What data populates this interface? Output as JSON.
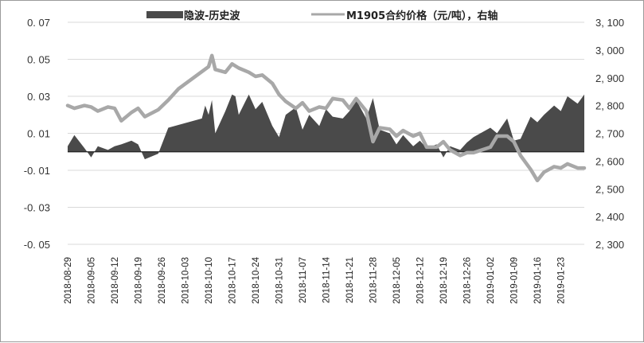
{
  "chart_data": {
    "type": "area",
    "legend_position": "top",
    "grid": {
      "horizontal": true,
      "vertical": false
    },
    "series": [
      {
        "name": "隐波-历史波",
        "kind": "area",
        "axis": "left",
        "color": "#4a4a4a",
        "points": [
          [
            "2018-08-29",
            0.003
          ],
          [
            "2018-08-31",
            0.009
          ],
          [
            "2018-09-03",
            0.002
          ],
          [
            "2018-09-05",
            -0.003
          ],
          [
            "2018-09-07",
            0.003
          ],
          [
            "2018-09-10",
            0.001
          ],
          [
            "2018-09-12",
            0.003
          ],
          [
            "2018-09-14",
            0.004
          ],
          [
            "2018-09-17",
            0.006
          ],
          [
            "2018-09-19",
            0.004
          ],
          [
            "2018-09-21",
            -0.004
          ],
          [
            "2018-09-25",
            -0.001
          ],
          [
            "2018-09-28",
            0.013
          ],
          [
            "2018-10-08",
            0.018
          ],
          [
            "2018-10-09",
            0.025
          ],
          [
            "2018-10-10",
            0.02
          ],
          [
            "2018-10-11",
            0.028
          ],
          [
            "2018-10-12",
            0.01
          ],
          [
            "2018-10-15",
            0.022
          ],
          [
            "2018-10-17",
            0.031
          ],
          [
            "2018-10-18",
            0.03
          ],
          [
            "2018-10-19",
            0.02
          ],
          [
            "2018-10-22",
            0.031
          ],
          [
            "2018-10-24",
            0.023
          ],
          [
            "2018-10-26",
            0.027
          ],
          [
            "2018-10-29",
            0.014
          ],
          [
            "2018-10-31",
            0.008
          ],
          [
            "2018-11-02",
            0.02
          ],
          [
            "2018-11-05",
            0.024
          ],
          [
            "2018-11-07",
            0.012
          ],
          [
            "2018-11-09",
            0.02
          ],
          [
            "2018-11-12",
            0.014
          ],
          [
            "2018-11-14",
            0.023
          ],
          [
            "2018-11-16",
            0.019
          ],
          [
            "2018-11-19",
            0.018
          ],
          [
            "2018-11-21",
            0.022
          ],
          [
            "2018-11-23",
            0.028
          ],
          [
            "2018-11-26",
            0.018
          ],
          [
            "2018-11-28",
            0.029
          ],
          [
            "2018-11-30",
            0.012
          ],
          [
            "2018-12-03",
            0.01
          ],
          [
            "2018-12-05",
            0.004
          ],
          [
            "2018-12-07",
            0.009
          ],
          [
            "2018-12-10",
            0.003
          ],
          [
            "2018-12-12",
            0.006
          ],
          [
            "2018-12-14",
            0.002
          ],
          [
            "2018-12-17",
            0.004
          ],
          [
            "2018-12-19",
            -0.003
          ],
          [
            "2018-12-21",
            0.003
          ],
          [
            "2018-12-24",
            0.001
          ],
          [
            "2018-12-26",
            0.005
          ],
          [
            "2018-12-28",
            0.008
          ],
          [
            "2019-01-02",
            0.013
          ],
          [
            "2019-01-04",
            0.01
          ],
          [
            "2019-01-07",
            0.018
          ],
          [
            "2019-01-09",
            0.006
          ],
          [
            "2019-01-11",
            0.007
          ],
          [
            "2019-01-14",
            0.019
          ],
          [
            "2019-01-16",
            0.016
          ],
          [
            "2019-01-18",
            0.02
          ],
          [
            "2019-01-21",
            0.025
          ],
          [
            "2019-01-23",
            0.022
          ],
          [
            "2019-01-25",
            0.03
          ],
          [
            "2019-01-28",
            0.026
          ],
          [
            "2019-01-30",
            0.031
          ]
        ]
      },
      {
        "name": "M1905合约价格（元/吨），右轴",
        "kind": "line",
        "axis": "right",
        "color": "#a8a8a8",
        "points": [
          [
            "2018-08-29",
            2800
          ],
          [
            "2018-08-31",
            2790
          ],
          [
            "2018-09-03",
            2800
          ],
          [
            "2018-09-05",
            2795
          ],
          [
            "2018-09-07",
            2780
          ],
          [
            "2018-09-10",
            2795
          ],
          [
            "2018-09-12",
            2790
          ],
          [
            "2018-09-14",
            2745
          ],
          [
            "2018-09-17",
            2775
          ],
          [
            "2018-09-19",
            2790
          ],
          [
            "2018-09-21",
            2760
          ],
          [
            "2018-09-25",
            2785
          ],
          [
            "2018-09-28",
            2820
          ],
          [
            "2018-10-01",
            2860
          ],
          [
            "2018-10-10",
            2940
          ],
          [
            "2018-10-11",
            2980
          ],
          [
            "2018-10-12",
            2930
          ],
          [
            "2018-10-15",
            2920
          ],
          [
            "2018-10-17",
            2950
          ],
          [
            "2018-10-19",
            2935
          ],
          [
            "2018-10-22",
            2920
          ],
          [
            "2018-10-24",
            2905
          ],
          [
            "2018-10-26",
            2910
          ],
          [
            "2018-10-29",
            2880
          ],
          [
            "2018-10-31",
            2840
          ],
          [
            "2018-11-02",
            2815
          ],
          [
            "2018-11-05",
            2790
          ],
          [
            "2018-11-07",
            2810
          ],
          [
            "2018-11-09",
            2780
          ],
          [
            "2018-11-12",
            2795
          ],
          [
            "2018-11-14",
            2790
          ],
          [
            "2018-11-16",
            2825
          ],
          [
            "2018-11-19",
            2820
          ],
          [
            "2018-11-21",
            2790
          ],
          [
            "2018-11-23",
            2825
          ],
          [
            "2018-11-26",
            2780
          ],
          [
            "2018-11-28",
            2670
          ],
          [
            "2018-11-30",
            2720
          ],
          [
            "2018-12-03",
            2715
          ],
          [
            "2018-12-05",
            2690
          ],
          [
            "2018-12-07",
            2710
          ],
          [
            "2018-12-10",
            2690
          ],
          [
            "2018-12-12",
            2700
          ],
          [
            "2018-12-14",
            2650
          ],
          [
            "2018-12-17",
            2650
          ],
          [
            "2018-12-19",
            2670
          ],
          [
            "2018-12-21",
            2640
          ],
          [
            "2018-12-24",
            2620
          ],
          [
            "2018-12-26",
            2630
          ],
          [
            "2018-12-28",
            2630
          ],
          [
            "2019-01-02",
            2650
          ],
          [
            "2019-01-04",
            2690
          ],
          [
            "2019-01-07",
            2690
          ],
          [
            "2019-01-09",
            2670
          ],
          [
            "2019-01-11",
            2620
          ],
          [
            "2019-01-14",
            2570
          ],
          [
            "2019-01-16",
            2530
          ],
          [
            "2019-01-18",
            2560
          ],
          [
            "2019-01-21",
            2580
          ],
          [
            "2019-01-23",
            2575
          ],
          [
            "2019-01-25",
            2590
          ],
          [
            "2019-01-28",
            2575
          ],
          [
            "2019-01-30",
            2575
          ]
        ]
      }
    ],
    "left_axis": {
      "ylim": [
        -0.05,
        0.07
      ],
      "ticks": [
        -0.05,
        -0.03,
        -0.01,
        0.01,
        0.03,
        0.05,
        0.07
      ],
      "tick_labels": [
        "-0. 05",
        "-0. 03",
        "-0. 01",
        "0. 01",
        "0. 03",
        "0. 05",
        "0. 07"
      ]
    },
    "right_axis": {
      "ylim": [
        2300,
        3100
      ],
      "ticks": [
        2300,
        2400,
        2500,
        2600,
        2700,
        2800,
        2900,
        3000,
        3100
      ],
      "tick_labels": [
        "2, 300",
        "2, 400",
        "2, 500",
        "2, 600",
        "2, 700",
        "2, 800",
        "2, 900",
        "3, 000",
        "3, 100"
      ]
    },
    "x_axis": {
      "range": [
        "2018-08-29",
        "2019-01-30"
      ],
      "tick_labels": [
        "2018-08-29",
        "2018-09-05",
        "2018-09-12",
        "2018-09-19",
        "2018-09-26",
        "2018-10-03",
        "2018-10-10",
        "2018-10-17",
        "2018-10-24",
        "2018-10-31",
        "2018-11-07",
        "2018-11-14",
        "2018-11-21",
        "2018-11-28",
        "2018-12-05",
        "2018-12-12",
        "2018-12-19",
        "2018-12-26",
        "2019-01-02",
        "2019-01-09",
        "2019-01-16",
        "2019-01-23"
      ]
    }
  }
}
